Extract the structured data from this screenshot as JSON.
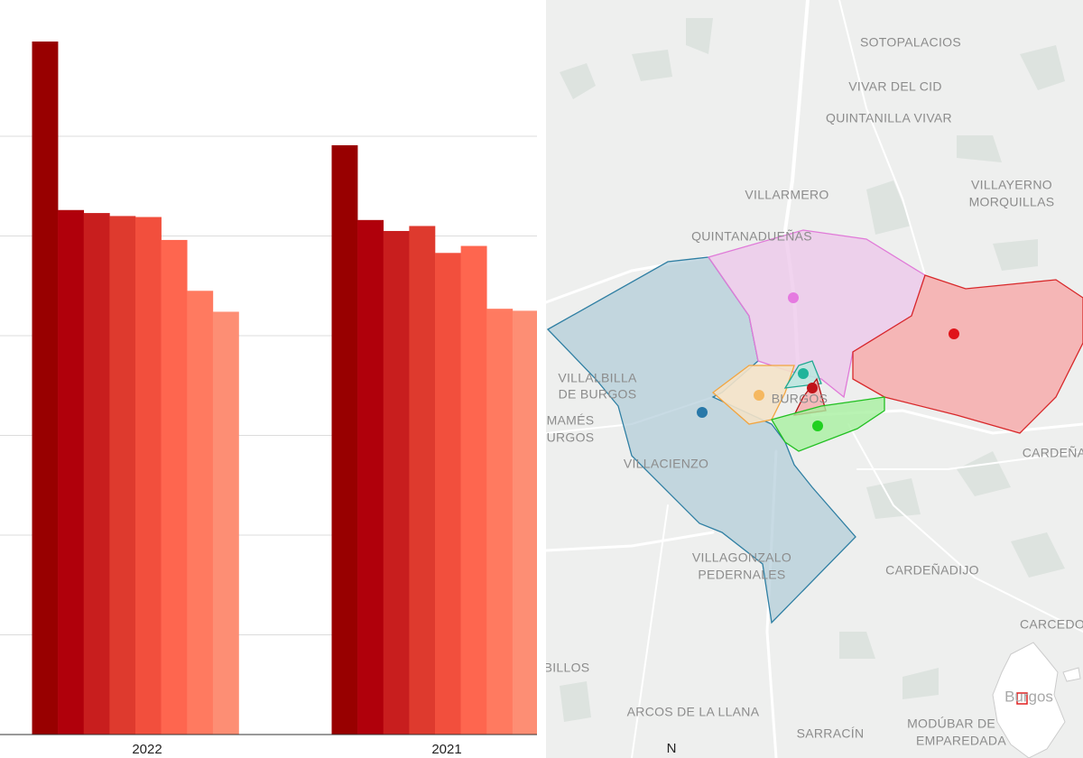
{
  "chart_data": {
    "type": "bar",
    "categories": [
      "2022",
      "2021"
    ],
    "series": [
      {
        "color": "#980000",
        "values": [
          6.95,
          5.91
        ]
      },
      {
        "color": "#b0000b",
        "values": [
          5.26,
          5.16
        ]
      },
      {
        "color": "#c81e1e",
        "values": [
          5.23,
          5.05
        ]
      },
      {
        "color": "#de3a2e",
        "values": [
          5.2,
          5.1
        ]
      },
      {
        "color": "#f24f3d",
        "values": [
          5.19,
          4.83
        ]
      },
      {
        "color": "#fe664f",
        "values": [
          4.96,
          4.9
        ]
      },
      {
        "color": "#ff7a60",
        "values": [
          4.45,
          4.27
        ]
      },
      {
        "color": "#fd8e74",
        "values": [
          4.24,
          4.25
        ]
      }
    ],
    "ylim": [
      0,
      7
    ],
    "yticks": [
      1,
      2,
      3,
      4,
      5,
      6
    ],
    "grid": true
  },
  "map": {
    "labels": [
      [
        "SOTOPALACIOS"
      ],
      [
        "VIVAR DEL CID"
      ],
      [
        "QUINTANILLA VIVAR"
      ],
      [
        "VILLAYERNO",
        "MORQUILLAS"
      ],
      [
        "VILLARMERO"
      ],
      [
        "QUINTANADUEÑAS"
      ],
      [
        "VILLALBILLA",
        "DE BURGOS"
      ],
      [
        "BURGOS"
      ],
      [
        "MAMÉS",
        "URGOS"
      ],
      [
        "VILLACIENZO"
      ],
      [
        "CARDEÑA"
      ],
      [
        "VILLAGONZALO",
        "PEDERNALES"
      ],
      [
        "CARDEÑADIJO"
      ],
      [
        "CARCEDO"
      ],
      [
        "BILLOS"
      ],
      [
        "ARCOS DE LA LLANA"
      ],
      [
        "SARRACÍN"
      ],
      [
        "MODÚBAR DE LA",
        "EMPAREDADA"
      ]
    ],
    "inset_label": "Burgos",
    "north": "N"
  }
}
